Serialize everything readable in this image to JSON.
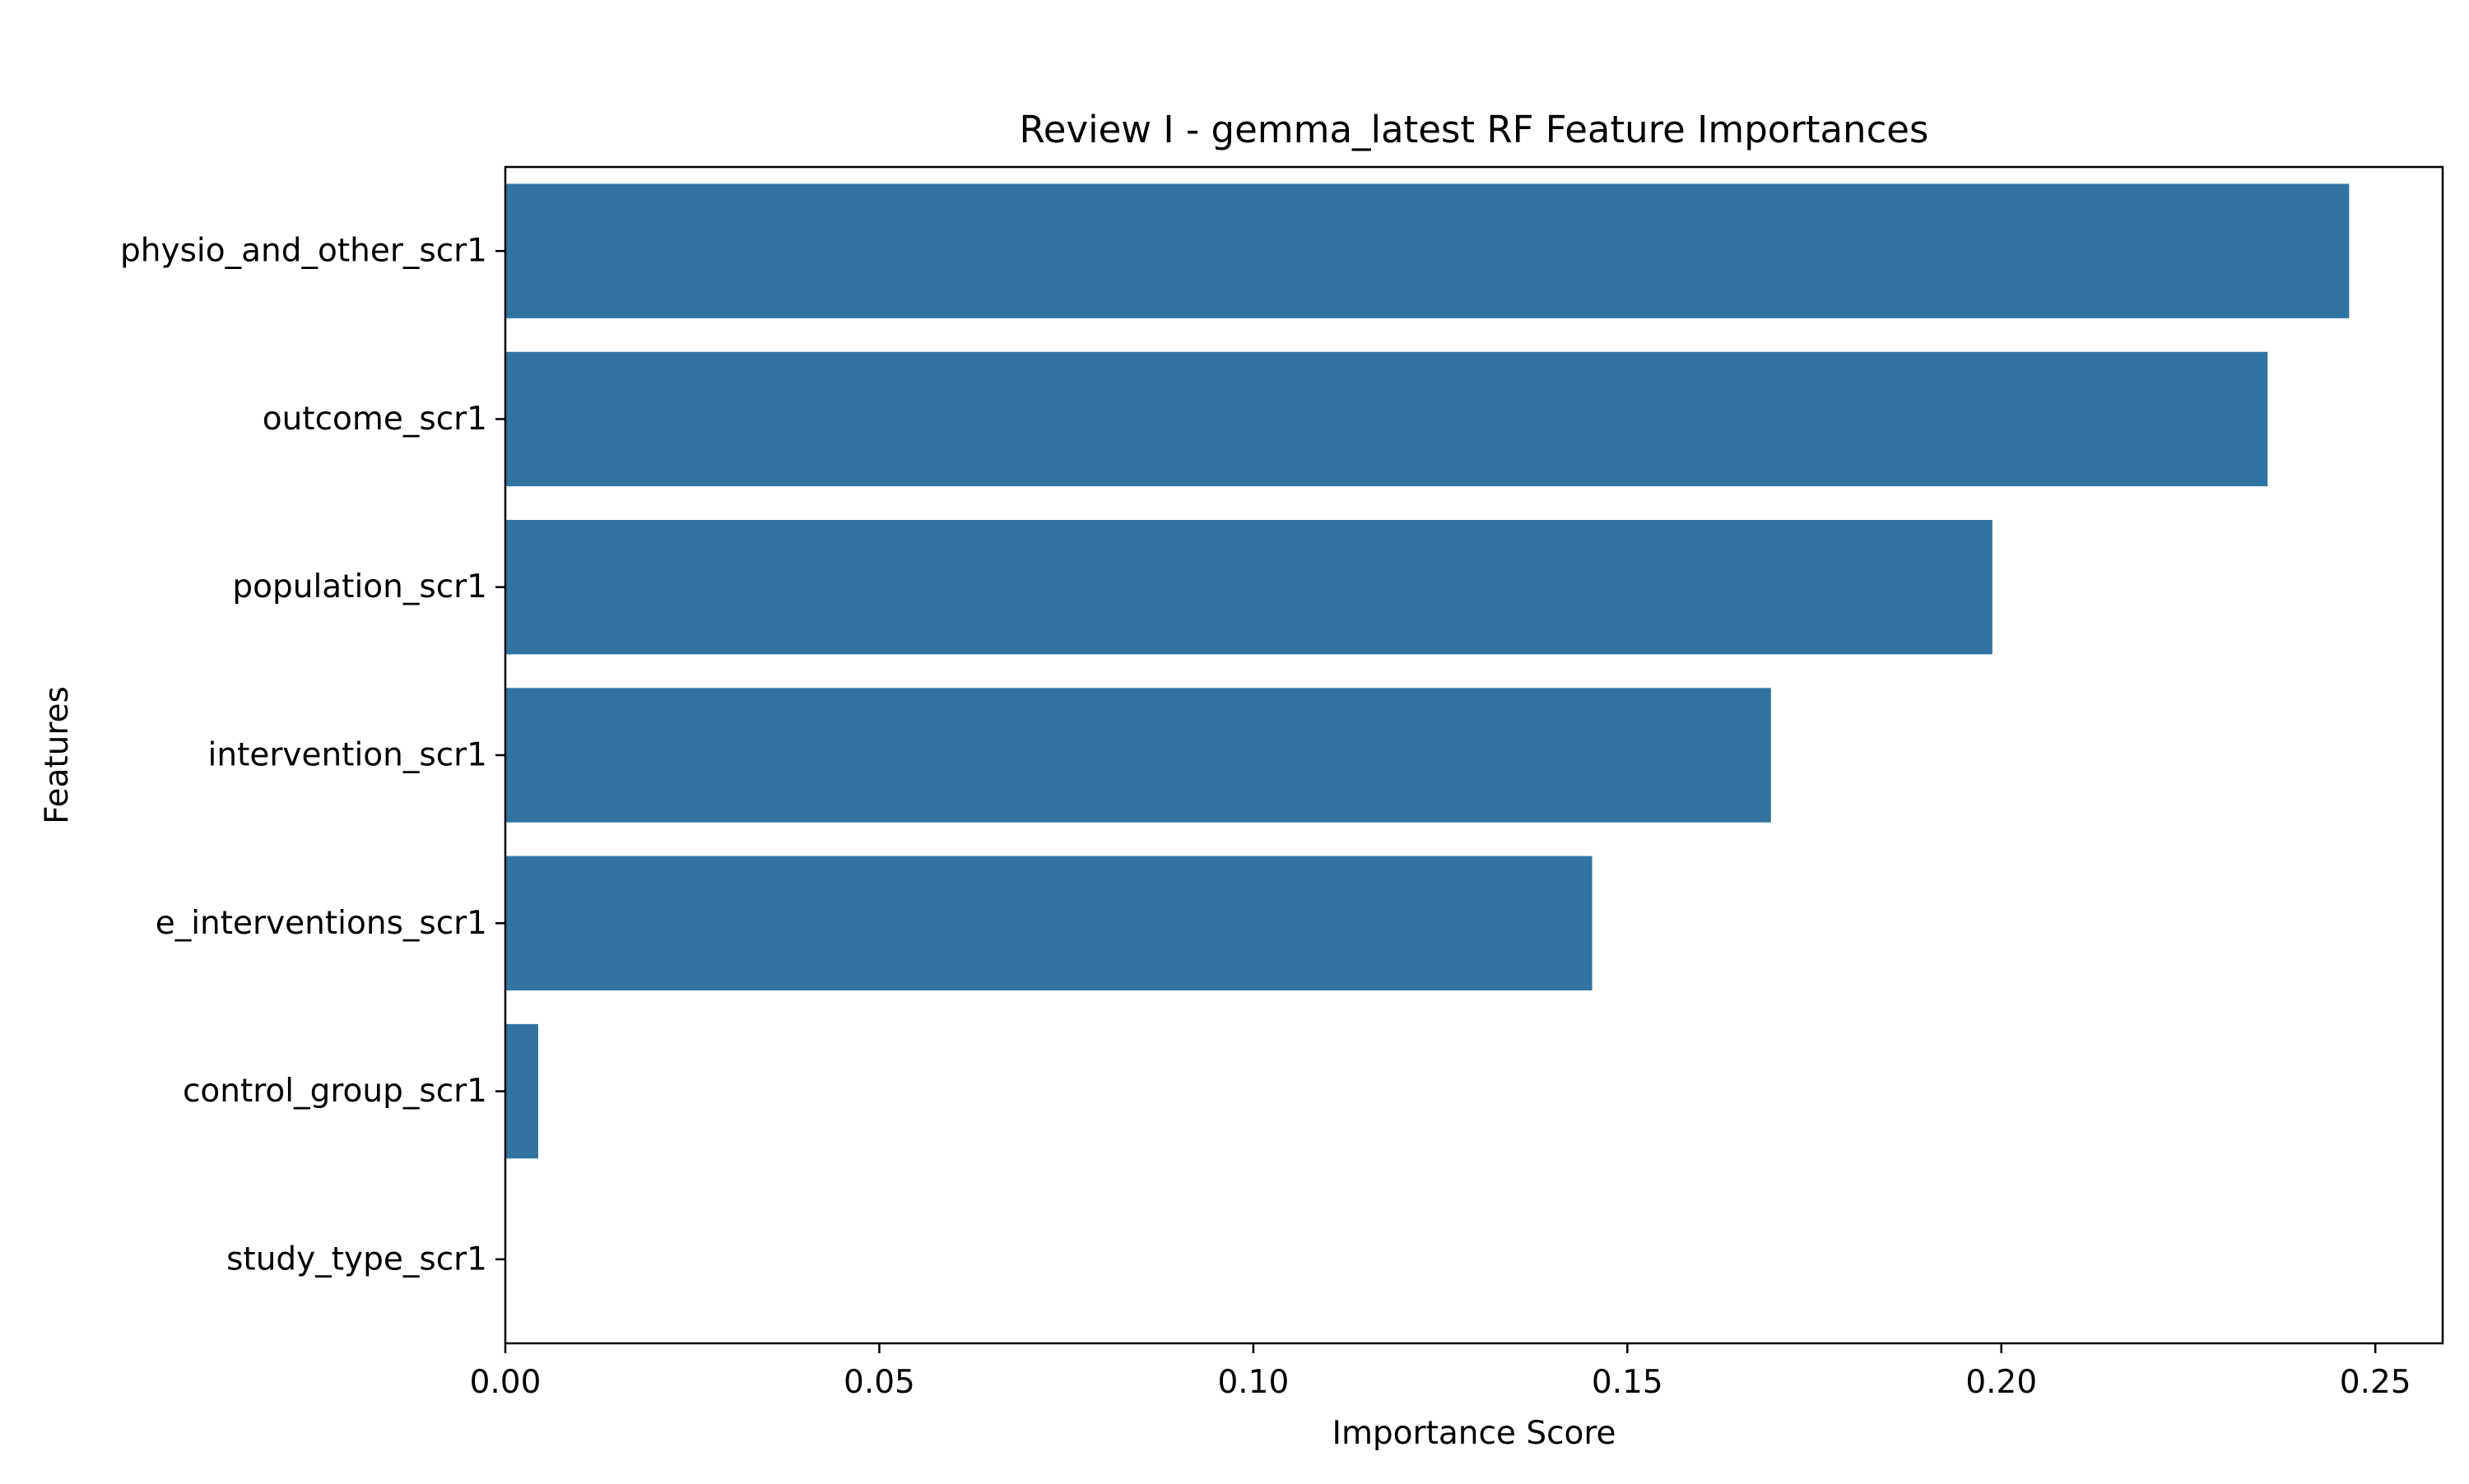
{
  "chart_data": {
    "type": "bar",
    "orientation": "horizontal",
    "title": "Review I - gemma_latest RF Feature Importances",
    "xlabel": "Importance Score",
    "ylabel": "Features",
    "categories": [
      "physio_and_other_scr1",
      "outcome_scr1",
      "population_scr1",
      "intervention_scr1",
      "e_interventions_scr1",
      "control_group_scr1",
      "study_type_scr1"
    ],
    "values": [
      0.2465,
      0.2356,
      0.1988,
      0.1692,
      0.1453,
      0.0044,
      0.0
    ],
    "xlim": [
      0.0,
      0.259
    ],
    "xticks": [
      0.0,
      0.05,
      0.1,
      0.15,
      0.2,
      0.25
    ],
    "xtick_labels": [
      "0.00",
      "0.05",
      "0.10",
      "0.15",
      "0.20",
      "0.25"
    ],
    "bar_color": "#3274a1",
    "grid": false,
    "legend": "none"
  }
}
